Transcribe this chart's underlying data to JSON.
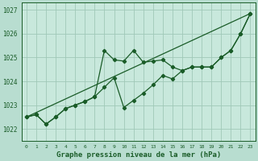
{
  "xlabel": "Graphe pression niveau de la mer (hPa)",
  "bg_color": "#b8ddd0",
  "plot_bg_color": "#c8e8dc",
  "grid_color": "#a0c8b8",
  "line_color": "#1a5c28",
  "ylim": [
    1021.5,
    1027.3
  ],
  "xlim": [
    -0.5,
    23.5
  ],
  "yticks": [
    1022,
    1023,
    1024,
    1025,
    1026,
    1027
  ],
  "xticks": [
    0,
    1,
    2,
    3,
    4,
    5,
    6,
    7,
    8,
    9,
    10,
    11,
    12,
    13,
    14,
    15,
    16,
    17,
    18,
    19,
    20,
    21,
    22,
    23
  ],
  "series1": [
    1022.5,
    1022.6,
    1022.2,
    1022.5,
    1022.85,
    1023.0,
    1023.15,
    1023.35,
    1025.3,
    1024.9,
    1024.85,
    1025.3,
    1024.8,
    1024.85,
    1024.9,
    1024.6,
    1024.45,
    1024.6,
    1024.6,
    1024.6,
    1025.0,
    1025.3,
    1026.0,
    1026.85
  ],
  "series2": [
    1022.5,
    1022.6,
    1022.2,
    1022.5,
    1022.85,
    1023.0,
    1023.15,
    1023.35,
    1023.75,
    1024.15,
    1022.9,
    1023.2,
    1023.5,
    1023.85,
    1024.25,
    1024.1,
    1024.45,
    1024.6,
    1024.6,
    1024.6,
    1025.0,
    1025.3,
    1026.0,
    1026.85
  ],
  "trend": [
    1022.5,
    1026.85
  ]
}
